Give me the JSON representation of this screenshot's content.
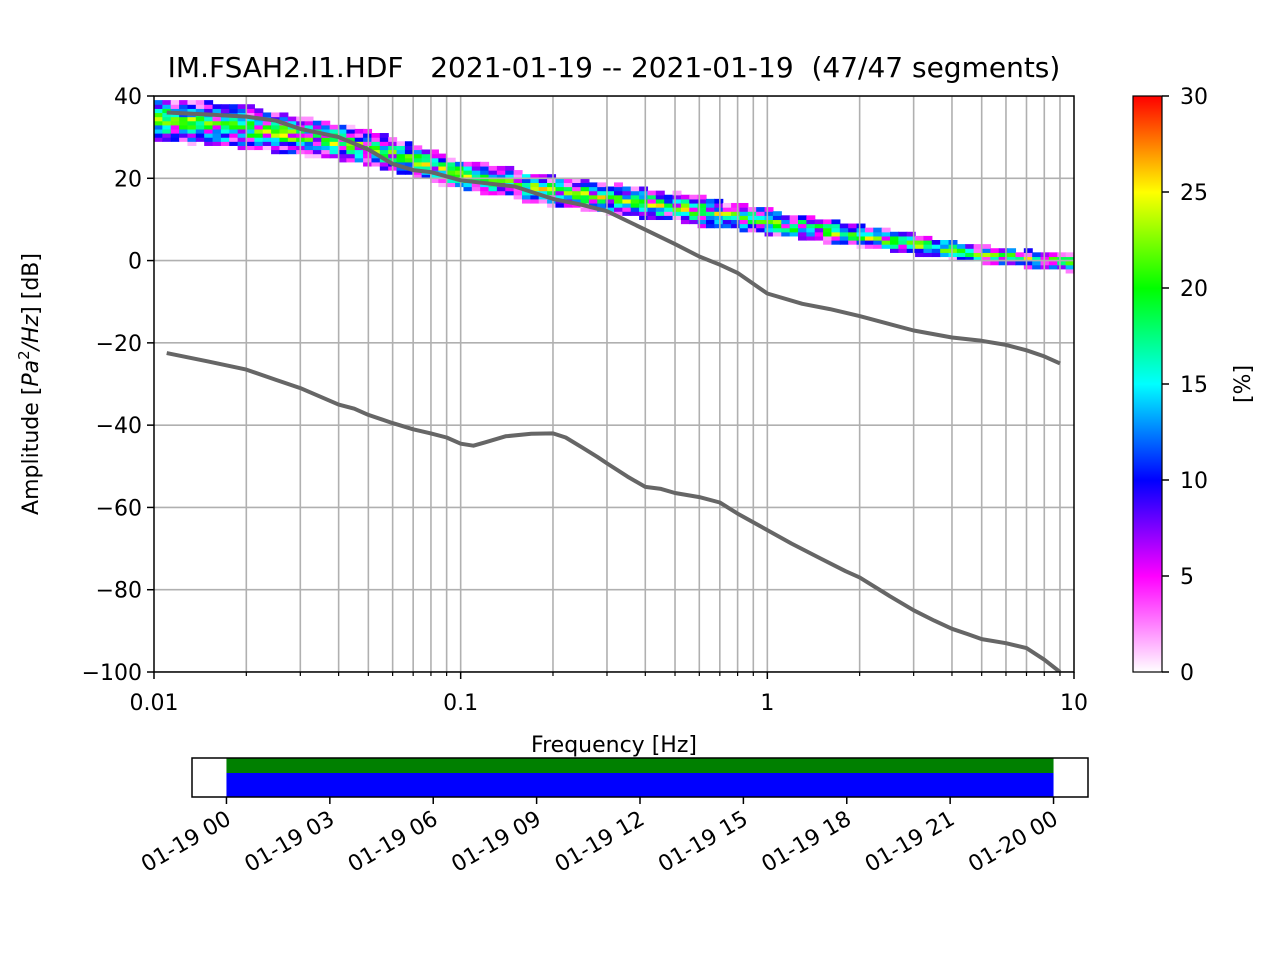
{
  "chart_data": [
    {
      "type": "heatmap",
      "title": "IM.FSAH2.I1.HDF   2021-01-19 -- 2021-01-19  (47/47 segments)",
      "xlabel": "Frequency [Hz]",
      "ylabel_parts": [
        "Amplitude [",
        "Pa",
        "2",
        "/",
        "Hz",
        "] [dB]"
      ],
      "xscale": "log",
      "xlim": [
        0.01,
        10
      ],
      "ylim": [
        -100,
        40
      ],
      "x_ticks": [
        0.01,
        0.1,
        1,
        10
      ],
      "x_tick_labels": [
        "0.01",
        "0.1",
        "1",
        "10"
      ],
      "y_ticks": [
        40,
        20,
        0,
        -20,
        -40,
        -60,
        -80,
        -100
      ],
      "y_tick_labels": [
        "40",
        "20",
        "0",
        "−20",
        "−40",
        "−60",
        "−80",
        "−100"
      ],
      "grid": true,
      "ppsd_band": {
        "x": [
          0.01,
          0.02,
          0.05,
          0.1,
          0.2,
          0.5,
          1,
          2,
          5,
          10
        ],
        "center_db": [
          34,
          32,
          27,
          20.5,
          16.5,
          12.5,
          9,
          5.5,
          1,
          -1
        ],
        "spread_db": [
          5,
          5,
          4,
          3.5,
          3.5,
          3.5,
          3,
          2.5,
          2,
          2
        ]
      },
      "series": [
        {
          "role": "upper-noise-model",
          "x": [
            0.011,
            0.015,
            0.02,
            0.025,
            0.03,
            0.04,
            0.05,
            0.06,
            0.07,
            0.08,
            0.1,
            0.15,
            0.2,
            0.25,
            0.3,
            0.4,
            0.5,
            0.6,
            0.7,
            0.8,
            1.0,
            1.3,
            1.6,
            2.0,
            3.0,
            4.0,
            5.0,
            6.0,
            7.0,
            8.0,
            9.0
          ],
          "y": [
            36,
            35.5,
            35,
            34,
            32,
            30,
            27,
            23.5,
            22,
            21.5,
            19.5,
            18,
            15,
            13.5,
            12,
            7.5,
            4,
            1,
            -1,
            -3,
            -8,
            -10.5,
            -11.8,
            -13.5,
            -17,
            -18.7,
            -19.5,
            -20.5,
            -21.8,
            -23.3,
            -25
          ]
        },
        {
          "role": "lower-noise-model",
          "x": [
            0.011,
            0.015,
            0.02,
            0.025,
            0.03,
            0.04,
            0.045,
            0.05,
            0.06,
            0.07,
            0.08,
            0.09,
            0.1,
            0.11,
            0.12,
            0.14,
            0.17,
            0.2,
            0.22,
            0.25,
            0.28,
            0.3,
            0.35,
            0.4,
            0.45,
            0.5,
            0.6,
            0.7,
            0.8,
            1.0,
            1.2,
            1.5,
            1.8,
            2.0,
            2.5,
            3.0,
            3.5,
            4.0,
            4.5,
            5.0,
            6.0,
            7.0,
            8.0,
            9.0
          ],
          "y": [
            -22.5,
            -24.5,
            -26.5,
            -29,
            -31,
            -35,
            -36,
            -37.5,
            -39.5,
            -41,
            -42,
            -43,
            -44.5,
            -45,
            -44.2,
            -42.7,
            -42.1,
            -42,
            -43,
            -45.5,
            -47.8,
            -49.3,
            -52.5,
            -55,
            -55.5,
            -56.5,
            -57.5,
            -58.8,
            -61.5,
            -65.5,
            -68.8,
            -72.5,
            -75.5,
            -77,
            -81.5,
            -85,
            -87.5,
            -89.5,
            -90.8,
            -92,
            -93,
            -94.2,
            -97,
            -100
          ]
        }
      ]
    },
    {
      "type": "heatmap",
      "colorbar_label": "[%]",
      "range": [
        0,
        30
      ],
      "ticks": [
        0,
        5,
        10,
        15,
        20,
        25,
        30
      ],
      "tick_labels": [
        "0",
        "5",
        "10",
        "15",
        "20",
        "25",
        "30"
      ],
      "colors": [
        "#ffffff",
        "#ff00ff",
        "#0000ff",
        "#00ffff",
        "#00ff00",
        "#ffff00",
        "#ff0000"
      ]
    },
    {
      "type": "bar",
      "description_role": "data coverage timeline",
      "xlim_hours": [
        -1,
        25
      ],
      "tick_hours": [
        0,
        3,
        6,
        9,
        12,
        15,
        18,
        21,
        24
      ],
      "tick_labels": [
        "01-19 00",
        "01-19 03",
        "01-19 06",
        "01-19 09",
        "01-19 12",
        "01-19 15",
        "01-19 18",
        "01-19 21",
        "01-20 00"
      ],
      "coverage_hours": [
        0,
        24
      ],
      "colors": {
        "top": "#008000",
        "bottom": "#0000ff"
      }
    }
  ]
}
